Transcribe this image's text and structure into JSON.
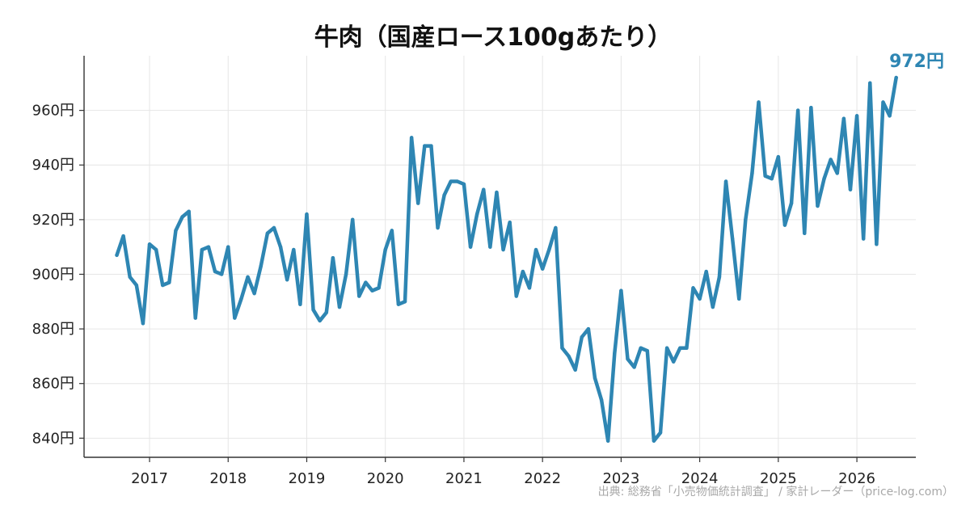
{
  "chart_data": {
    "type": "line",
    "title": "牛肉（国産ロース100gあたり）",
    "xlabel": "",
    "ylabel": "",
    "x_tick_labels": [
      "2017",
      "2018",
      "2019",
      "2020",
      "2021",
      "2022",
      "2023",
      "2024",
      "2025",
      "2026"
    ],
    "y_tick_labels": [
      "840円",
      "860円",
      "880円",
      "900円",
      "920円",
      "940円",
      "960円"
    ],
    "y_ticks": [
      840,
      860,
      880,
      900,
      920,
      940,
      960
    ],
    "ylim": [
      833,
      980
    ],
    "xlim": [
      "2016-03",
      "2026-10"
    ],
    "grid": true,
    "color": "#2e86b3",
    "last_value_label": "972円",
    "source": "出典: 総務省「小売物価統計調査」 / 家計レーダー（price-log.com）",
    "series": [
      {
        "x": [
          "2016-08",
          "2016-09",
          "2016-10",
          "2016-11",
          "2016-12",
          "2017-01",
          "2017-02",
          "2017-03",
          "2017-04",
          "2017-05",
          "2017-06",
          "2017-07",
          "2017-08",
          "2017-09",
          "2017-10",
          "2017-11",
          "2017-12",
          "2018-01",
          "2018-02",
          "2018-03",
          "2018-04",
          "2018-05",
          "2018-06",
          "2018-07",
          "2018-08",
          "2018-09",
          "2018-10",
          "2018-11",
          "2018-12",
          "2019-01",
          "2019-02",
          "2019-03",
          "2019-04",
          "2019-05",
          "2019-06",
          "2019-07",
          "2019-08",
          "2019-09",
          "2019-10",
          "2019-11",
          "2019-12",
          "2020-01",
          "2020-02",
          "2020-03",
          "2020-04",
          "2020-05",
          "2020-06",
          "2020-07",
          "2020-08",
          "2020-09",
          "2020-10",
          "2020-11",
          "2020-12",
          "2021-01",
          "2021-02",
          "2021-03",
          "2021-04",
          "2021-05",
          "2021-06",
          "2021-07",
          "2021-08",
          "2021-09",
          "2021-10",
          "2021-11",
          "2021-12",
          "2022-01",
          "2022-02",
          "2022-03",
          "2022-04",
          "2022-05",
          "2022-06",
          "2022-07",
          "2022-08",
          "2022-09",
          "2022-10",
          "2022-11",
          "2022-12",
          "2023-01",
          "2023-02",
          "2023-03",
          "2023-04",
          "2023-05",
          "2023-06",
          "2023-07",
          "2023-08",
          "2023-09",
          "2023-10",
          "2023-11",
          "2023-12",
          "2024-01",
          "2024-02",
          "2024-03",
          "2024-04",
          "2024-05",
          "2024-06",
          "2024-07",
          "2024-08",
          "2024-09",
          "2024-10",
          "2024-11",
          "2024-12",
          "2025-01",
          "2025-02",
          "2025-03",
          "2025-04",
          "2025-05",
          "2025-06",
          "2025-07",
          "2025-08",
          "2025-09",
          "2025-10",
          "2025-11",
          "2025-12",
          "2026-01",
          "2026-02",
          "2026-03",
          "2026-04",
          "2026-05",
          "2026-06",
          "2026-07"
        ],
        "values": [
          907,
          914,
          899,
          896,
          882,
          911,
          909,
          896,
          897,
          916,
          921,
          923,
          884,
          909,
          910,
          901,
          900,
          910,
          884,
          891,
          899,
          893,
          903,
          915,
          917,
          910,
          898,
          909,
          889,
          922,
          887,
          883,
          886,
          906,
          888,
          900,
          920,
          892,
          897,
          894,
          895,
          909,
          916,
          889,
          890,
          950,
          926,
          947,
          947,
          917,
          929,
          934,
          934,
          933,
          910,
          922,
          931,
          910,
          930,
          909,
          919,
          892,
          901,
          895,
          909,
          902,
          909,
          917,
          873,
          870,
          865,
          877,
          880,
          862,
          854,
          839,
          871,
          894,
          869,
          866,
          873,
          872,
          839,
          842,
          873,
          868,
          873,
          873,
          895,
          891,
          901,
          888,
          899,
          934,
          913,
          891,
          920,
          937,
          963,
          936,
          935,
          943,
          918,
          926,
          960,
          915,
          961,
          925,
          935,
          942,
          937,
          957,
          931,
          958,
          913,
          970,
          911,
          963,
          958,
          972
        ]
      }
    ]
  }
}
